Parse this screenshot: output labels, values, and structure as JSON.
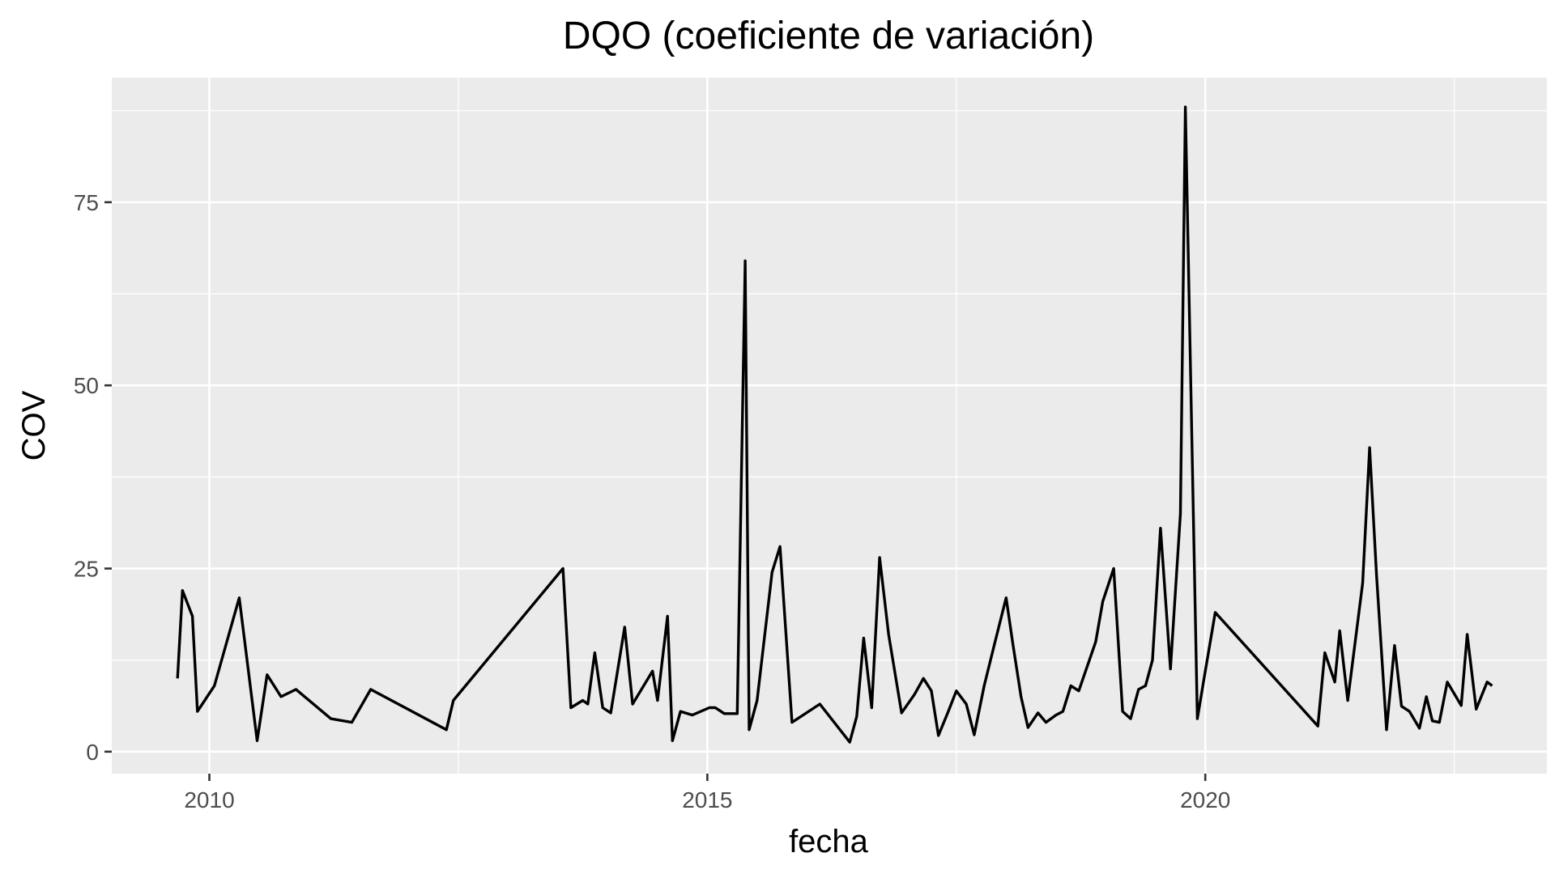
{
  "chart_data": {
    "type": "line",
    "title": "DQO (coeficiente de variación)",
    "xlabel": "fecha",
    "ylabel": "COV",
    "x_axis_kind": "date (decimal year)",
    "xlim": [
      2009.02,
      2023.43
    ],
    "ylim": [
      -3,
      92
    ],
    "x_ticks": [
      2010,
      2015,
      2020
    ],
    "x_tick_labels": [
      "2010",
      "2015",
      "2020"
    ],
    "y_ticks": [
      0,
      25,
      50,
      75
    ],
    "y_tick_labels": [
      "0",
      "25",
      "50",
      "75"
    ],
    "grid": "on (gray panel, white gridlines)",
    "legend": "none",
    "colors": {
      "panel": "#ebebeb",
      "grid": "#ffffff",
      "line": "#000000",
      "tick_label": "#4d4d4d"
    },
    "series": [
      {
        "x": [
          2009.68,
          2009.73,
          2009.83,
          2009.88,
          2010.05,
          2010.3,
          2010.48,
          2010.58,
          2010.72,
          2010.87,
          2011.22,
          2011.43,
          2011.62,
          2012.38,
          2012.45,
          2013.55,
          2013.63,
          2013.75,
          2013.8,
          2013.87,
          2013.95,
          2014.03,
          2014.17,
          2014.25,
          2014.45,
          2014.5,
          2014.6,
          2014.65,
          2014.73,
          2014.85,
          2015.02,
          2015.08,
          2015.17,
          2015.3,
          2015.38,
          2015.42,
          2015.5,
          2015.65,
          2015.73,
          2015.85,
          2016.13,
          2016.43,
          2016.5,
          2016.57,
          2016.65,
          2016.73,
          2016.82,
          2016.95,
          2017.08,
          2017.17,
          2017.25,
          2017.32,
          2017.42,
          2017.5,
          2017.6,
          2017.68,
          2017.78,
          2017.88,
          2018.0,
          2018.07,
          2018.15,
          2018.22,
          2018.32,
          2018.4,
          2018.5,
          2018.57,
          2018.65,
          2018.73,
          2018.9,
          2018.97,
          2019.08,
          2019.17,
          2019.25,
          2019.33,
          2019.4,
          2019.47,
          2019.55,
          2019.65,
          2019.75,
          2019.8,
          2019.92,
          2020.0,
          2020.1,
          2021.13,
          2021.2,
          2021.3,
          2021.35,
          2021.43,
          2021.58,
          2021.65,
          2021.72,
          2021.82,
          2021.9,
          2021.97,
          2022.05,
          2022.15,
          2022.22,
          2022.28,
          2022.35,
          2022.43,
          2022.57,
          2022.63,
          2022.72,
          2022.83,
          2022.88
        ],
        "y": [
          10,
          22,
          18.5,
          5.5,
          9,
          21,
          1.5,
          10.5,
          7.5,
          8.5,
          4.5,
          4,
          8.5,
          3,
          7,
          25,
          6,
          7,
          6.5,
          13.5,
          6,
          5.3,
          17,
          6.5,
          11,
          7,
          18.5,
          1.5,
          5.5,
          5,
          6,
          6,
          5.2,
          5.2,
          67,
          3,
          7,
          24.5,
          28,
          4,
          6.5,
          1.3,
          4.8,
          15.5,
          6,
          26.5,
          16,
          5.3,
          7.8,
          10,
          8.3,
          2.2,
          5.5,
          8.3,
          6.5,
          2.3,
          9,
          14.5,
          21,
          14.5,
          7.5,
          3.3,
          5.3,
          4,
          5,
          5.5,
          9,
          8.3,
          15,
          20.5,
          25,
          5.5,
          4.5,
          8.5,
          9,
          12.5,
          30.5,
          11.3,
          32.5,
          88,
          4.5,
          11,
          19,
          3.5,
          13.5,
          9.5,
          16.5,
          7,
          23,
          41.5,
          24,
          3,
          14.5,
          6.2,
          5.5,
          3.2,
          7.5,
          4.2,
          4,
          9.5,
          6.3,
          16,
          5.8,
          9.5,
          9
        ]
      }
    ]
  }
}
